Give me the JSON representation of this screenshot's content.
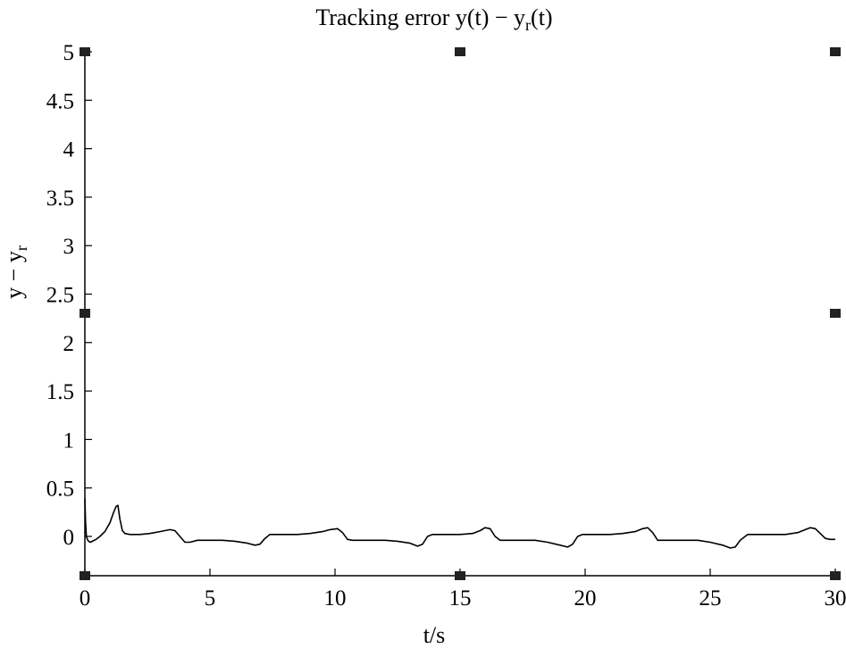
{
  "chart_data": {
    "type": "line",
    "title": "Tracking error y(t) − yr(t)",
    "title_parts": {
      "main": "Tracking error y(t) − y",
      "sub": "r",
      "tail": "(t)"
    },
    "xlabel": "t/s",
    "ylabel": "y − yr",
    "ylabel_parts": {
      "main": "y − y",
      "sub": "r"
    },
    "xlim": [
      0,
      30
    ],
    "ylim": [
      -0.4,
      5
    ],
    "xticks": [
      0,
      5,
      10,
      15,
      20,
      25,
      30
    ],
    "xtick_labels": [
      "0",
      "5",
      "10",
      "15",
      "20",
      "25",
      "30"
    ],
    "yticks": [
      0,
      0.5,
      1,
      1.5,
      2,
      2.5,
      3,
      3.5,
      4,
      4.5,
      5
    ],
    "ytick_labels": [
      "0",
      "0.5",
      "1",
      "1.5",
      "2",
      "2.5",
      "3",
      "3.5",
      "4",
      "4.5",
      "5"
    ],
    "grid": false,
    "line_color": "#000000",
    "series": [
      {
        "x": [
          0,
          0.03,
          0.06,
          0.1,
          0.15,
          0.22,
          0.3,
          0.45,
          0.6,
          0.8,
          1.0,
          1.15,
          1.25,
          1.32,
          1.4,
          1.5,
          1.6,
          1.8,
          2.2,
          2.6,
          3.0,
          3.4,
          3.6,
          3.8,
          4.0,
          4.2,
          4.5,
          5.0,
          5.5,
          6.0,
          6.5,
          6.8,
          7.0,
          7.2,
          7.4,
          7.6,
          8.0,
          8.5,
          9.0,
          9.5,
          9.8,
          10.1,
          10.3,
          10.5,
          10.7,
          11.0,
          11.5,
          12.0,
          12.5,
          13.0,
          13.3,
          13.5,
          13.7,
          13.9,
          14.2,
          14.6,
          15.0,
          15.5,
          15.8,
          16.0,
          16.2,
          16.4,
          16.6,
          17.0,
          17.5,
          18.0,
          18.5,
          19.0,
          19.3,
          19.5,
          19.7,
          19.9,
          20.2,
          20.6,
          21.0,
          21.5,
          22.0,
          22.3,
          22.5,
          22.7,
          22.9,
          23.2,
          23.6,
          24.0,
          24.5,
          25.0,
          25.5,
          25.8,
          26.0,
          26.2,
          26.5,
          27.0,
          27.5,
          28.0,
          28.5,
          28.8,
          29.0,
          29.2,
          29.4,
          29.6,
          29.8,
          30.0
        ],
        "y": [
          0.39,
          0.14,
          0.0,
          -0.03,
          -0.05,
          -0.06,
          -0.05,
          -0.03,
          0.0,
          0.05,
          0.14,
          0.25,
          0.31,
          0.32,
          0.18,
          0.06,
          0.03,
          0.02,
          0.02,
          0.03,
          0.05,
          0.07,
          0.06,
          0.0,
          -0.06,
          -0.06,
          -0.04,
          -0.04,
          -0.04,
          -0.05,
          -0.07,
          -0.09,
          -0.08,
          -0.02,
          0.02,
          0.02,
          0.02,
          0.02,
          0.03,
          0.05,
          0.07,
          0.08,
          0.04,
          -0.03,
          -0.04,
          -0.04,
          -0.04,
          -0.04,
          -0.05,
          -0.07,
          -0.1,
          -0.08,
          0.0,
          0.02,
          0.02,
          0.02,
          0.02,
          0.03,
          0.06,
          0.09,
          0.08,
          0.0,
          -0.04,
          -0.04,
          -0.04,
          -0.04,
          -0.06,
          -0.09,
          -0.11,
          -0.08,
          0.0,
          0.02,
          0.02,
          0.02,
          0.02,
          0.03,
          0.05,
          0.08,
          0.09,
          0.04,
          -0.04,
          -0.04,
          -0.04,
          -0.04,
          -0.04,
          -0.06,
          -0.09,
          -0.12,
          -0.11,
          -0.04,
          0.02,
          0.02,
          0.02,
          0.02,
          0.04,
          0.07,
          0.09,
          0.08,
          0.03,
          -0.02,
          -0.03,
          -0.03
        ]
      }
    ]
  }
}
